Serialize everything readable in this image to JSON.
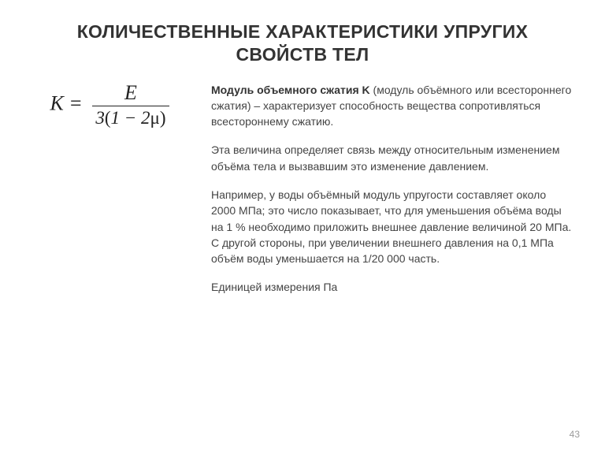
{
  "title": "КОЛИЧЕСТВЕННЫЕ ХАРАКТЕРИСТИКИ УПРУГИХ СВОЙСТВ ТЕЛ",
  "formula": {
    "lhs": "K",
    "eq": " = ",
    "numerator": "E",
    "den_prefix": "3",
    "den_paren_open": "(",
    "den_inner_a": "1 − 2",
    "den_mu": "μ",
    "den_paren_close": ")"
  },
  "para1_bold": "Модуль объемного сжатия K",
  "para1_rest": " (модуль объёмного или всестороннего сжатия) – характеризует способность вещества сопротивляться всестороннему сжатию.",
  "para2": "Эта величина определяет связь между относительным изменением объёма тела и вызвавшим это изменение давлением.",
  "para3": "Например, у воды объёмный модуль упругости составляет около 2000 МПа; это число показывает, что для уменьшения объёма воды на 1 % необходимо приложить внешнее давление величиной 20 МПа. С другой стороны, при увеличении внешнего давления на 0,1 МПа объём воды уменьшается на 1/20 000 часть.",
  "para4": "Единицей измерения Па",
  "page_number": "43"
}
